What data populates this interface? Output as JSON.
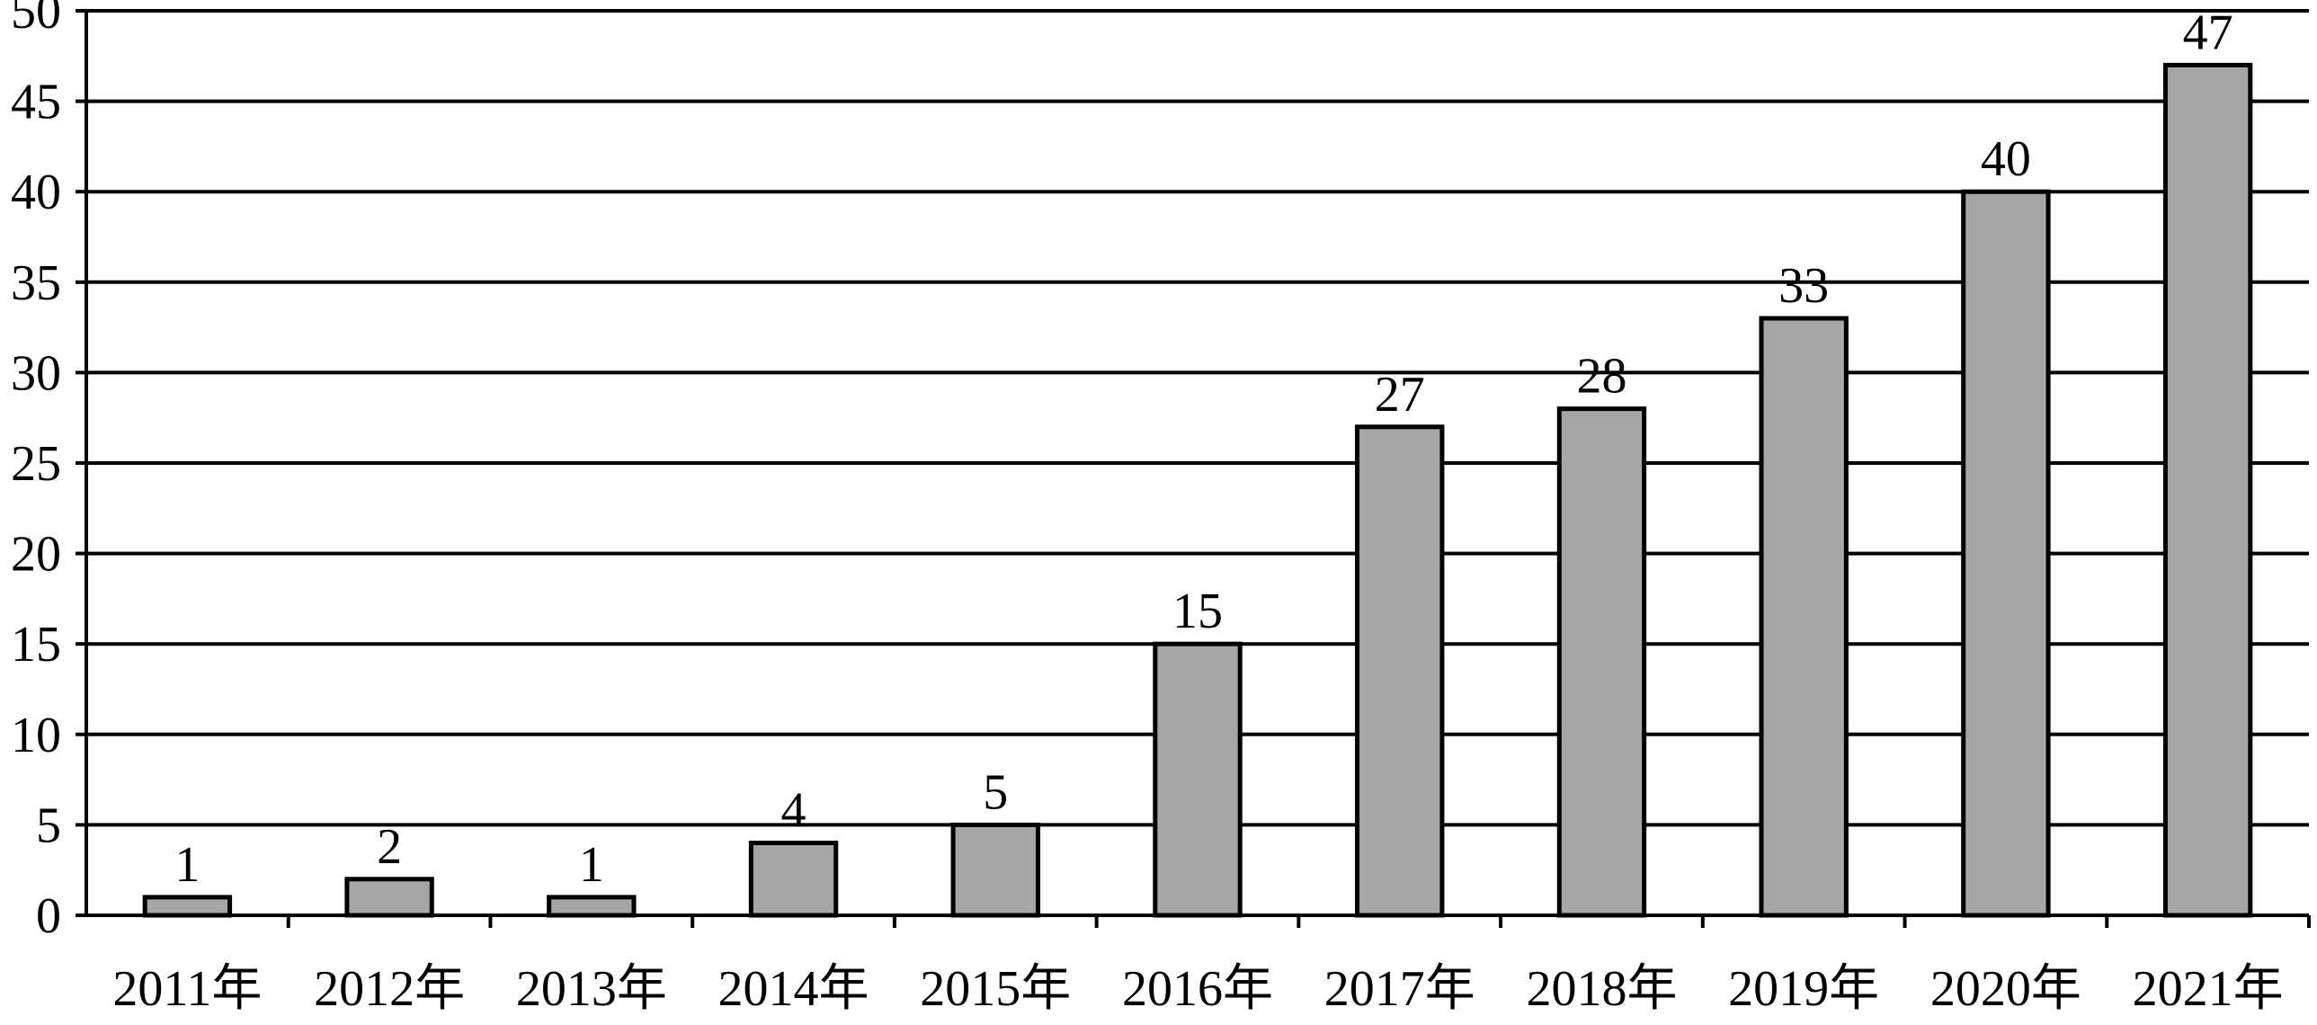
{
  "chart_data": {
    "type": "bar",
    "categories": [
      "2011年",
      "2012年",
      "2013年",
      "2014年",
      "2015年",
      "2016年",
      "2017年",
      "2018年",
      "2019年",
      "2020年",
      "2021年"
    ],
    "values": [
      1,
      2,
      1,
      4,
      5,
      15,
      27,
      28,
      33,
      40,
      47
    ],
    "data_labels": [
      "1",
      "2",
      "1",
      "4",
      "5",
      "15",
      "27",
      "28",
      "33",
      "40",
      "47"
    ],
    "y_ticks": [
      "0",
      "5",
      "10",
      "15",
      "20",
      "25",
      "30",
      "35",
      "40",
      "45",
      "50"
    ],
    "ylim": [
      0,
      50
    ],
    "grid": true,
    "legend": "none",
    "colors": {
      "bar_fill": "#a6a6a6",
      "bar_stroke": "#000000",
      "grid": "#000000",
      "axis": "#000000"
    }
  }
}
